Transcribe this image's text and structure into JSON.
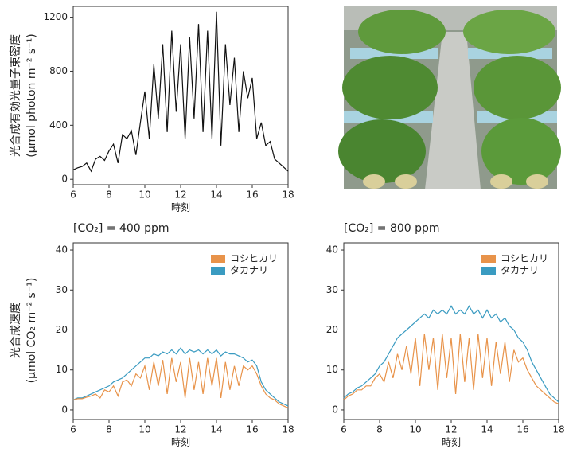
{
  "chart_data": [
    {
      "type": "line",
      "y_label": [
        "光合成有効光量子束密度",
        "(μmol photon m⁻² s⁻¹)"
      ],
      "x_label": "時刻",
      "x": [
        6,
        6.25,
        6.5,
        6.75,
        7,
        7.25,
        7.5,
        7.75,
        8,
        8.25,
        8.5,
        8.75,
        9,
        9.25,
        9.5,
        9.75,
        10,
        10.25,
        10.5,
        10.75,
        11,
        11.25,
        11.5,
        11.75,
        12,
        12.25,
        12.5,
        12.75,
        13,
        13.25,
        13.5,
        13.75,
        14,
        14.25,
        14.5,
        14.75,
        15,
        15.25,
        15.5,
        15.75,
        16,
        16.25,
        16.5,
        16.75,
        17,
        17.25,
        17.5,
        17.75,
        18
      ],
      "values": [
        70,
        85,
        95,
        120,
        60,
        150,
        170,
        140,
        210,
        260,
        120,
        330,
        300,
        360,
        180,
        420,
        650,
        300,
        850,
        450,
        1000,
        350,
        1100,
        500,
        1000,
        300,
        1050,
        450,
        1150,
        350,
        1100,
        300,
        1240,
        250,
        1000,
        550,
        900,
        350,
        800,
        600,
        750,
        300,
        420,
        250,
        280,
        150,
        120,
        90,
        60
      ],
      "color": "#111111",
      "xlim": [
        6,
        18
      ],
      "xticks": [
        6,
        8,
        10,
        12,
        14,
        16,
        18
      ],
      "ylim": [
        -40,
        1280
      ],
      "yticks": [
        0,
        400,
        800,
        1200
      ]
    },
    {
      "type": "line",
      "title": "[CO₂] = 400 ppm",
      "y_label": [
        "光合成速度",
        "(μmol CO₂ m⁻² s⁻¹)"
      ],
      "x_label": "時刻",
      "x": [
        6,
        6.25,
        6.5,
        6.75,
        7,
        7.25,
        7.5,
        7.75,
        8,
        8.25,
        8.5,
        8.75,
        9,
        9.25,
        9.5,
        9.75,
        10,
        10.25,
        10.5,
        10.75,
        11,
        11.25,
        11.5,
        11.75,
        12,
        12.25,
        12.5,
        12.75,
        13,
        13.25,
        13.5,
        13.75,
        14,
        14.25,
        14.5,
        14.75,
        15,
        15.25,
        15.5,
        15.75,
        16,
        16.25,
        16.5,
        16.75,
        17,
        17.25,
        17.5,
        17.75,
        18
      ],
      "series": [
        {
          "name": "コシヒカリ",
          "color": "#e8934a",
          "values": [
            2.5,
            2.8,
            2.8,
            3.2,
            3.5,
            4,
            3,
            5,
            4.5,
            6,
            3.5,
            7,
            7.5,
            6,
            9,
            8,
            11,
            5,
            12,
            6,
            12.5,
            4,
            13,
            7,
            12,
            3,
            13,
            5,
            12,
            4,
            13,
            6,
            13,
            3,
            12,
            5,
            11,
            6,
            11,
            10,
            11,
            9,
            6,
            4,
            3,
            2.5,
            1.5,
            1,
            0.5
          ]
        },
        {
          "name": "タカナリ",
          "color": "#3a9bc1",
          "values": [
            2.5,
            3,
            3,
            3.5,
            4,
            4.5,
            5,
            5.5,
            6,
            7,
            7.5,
            8,
            9,
            10,
            11,
            12,
            13,
            13,
            14,
            13.5,
            14.5,
            14,
            15,
            14,
            15.5,
            14,
            15,
            14.5,
            15,
            14,
            15,
            14,
            15,
            13.5,
            14.5,
            14,
            14,
            13.5,
            13,
            12,
            12.5,
            11,
            7,
            5,
            4,
            3,
            2,
            1.5,
            1
          ]
        }
      ],
      "legend": "upper right",
      "xlim": [
        6,
        18
      ],
      "xticks": [
        6,
        8,
        10,
        12,
        14,
        16,
        18
      ],
      "ylim": [
        -2.4,
        41.8
      ],
      "yticks": [
        0,
        10,
        20,
        30,
        40
      ]
    },
    {
      "type": "line",
      "title": "[CO₂] = 800 ppm",
      "x_label": "時刻",
      "x": [
        6,
        6.25,
        6.5,
        6.75,
        7,
        7.25,
        7.5,
        7.75,
        8,
        8.25,
        8.5,
        8.75,
        9,
        9.25,
        9.5,
        9.75,
        10,
        10.25,
        10.5,
        10.75,
        11,
        11.25,
        11.5,
        11.75,
        12,
        12.25,
        12.5,
        12.75,
        13,
        13.25,
        13.5,
        13.75,
        14,
        14.25,
        14.5,
        14.75,
        15,
        15.25,
        15.5,
        15.75,
        16,
        16.25,
        16.5,
        16.75,
        17,
        17.25,
        17.5,
        17.75,
        18
      ],
      "series": [
        {
          "name": "コシヒカリ",
          "color": "#e8934a",
          "values": [
            2.5,
            3.5,
            4,
            5,
            5,
            6,
            6,
            8,
            9,
            7,
            12,
            8,
            14,
            10,
            16,
            9,
            18,
            6,
            19,
            10,
            18,
            5,
            19,
            8,
            18,
            4,
            19,
            7,
            18,
            5,
            19,
            8,
            18,
            6,
            17,
            9,
            17,
            7,
            15,
            12,
            13,
            10,
            8,
            6,
            5,
            4,
            3,
            2,
            1.5
          ]
        },
        {
          "name": "タカナリ",
          "color": "#3a9bc1",
          "values": [
            3,
            4,
            4.5,
            5.5,
            6,
            7,
            8,
            9,
            11,
            12,
            14,
            16,
            18,
            19,
            20,
            21,
            22,
            23,
            24,
            23,
            25,
            24,
            25,
            24,
            26,
            24,
            25,
            24,
            26,
            24,
            25,
            23,
            25,
            23,
            24,
            22,
            23,
            21,
            20,
            18,
            17,
            15,
            12,
            10,
            8,
            6,
            4,
            3,
            2
          ]
        }
      ],
      "legend": "upper right",
      "xlim": [
        6,
        18
      ],
      "xticks": [
        6,
        8,
        10,
        12,
        14,
        16,
        18
      ],
      "ylim": [
        -2.4,
        41.8
      ],
      "yticks": [
        0,
        10,
        20,
        30,
        40
      ]
    }
  ]
}
